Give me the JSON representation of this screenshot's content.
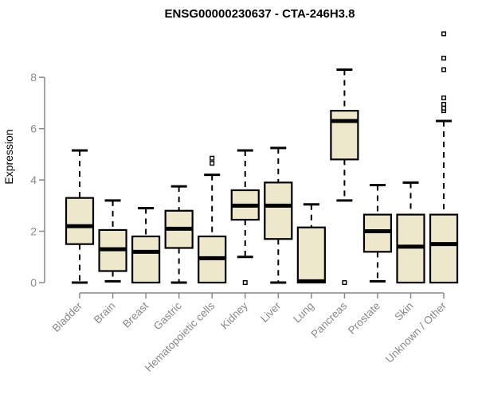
{
  "title": "ENSG00000230637 - CTA-246H3.8",
  "colors": {
    "background": "#FFFFFF",
    "box_fill": "#EDE8CC",
    "box_stroke": "#000000",
    "median": "#000000",
    "whisker": "#000000",
    "outlier_stroke": "#000000",
    "outlier_fill": "#FFFFFF",
    "axis": "#888888",
    "title": "#000000"
  },
  "chart_data": {
    "type": "boxplot",
    "title": "ENSG00000230637 - CTA-246H3.8",
    "xlabel": "",
    "ylabel": "Expression",
    "ylim": [
      0,
      9.8
    ],
    "y_ticks": [
      0,
      2,
      4,
      6,
      8
    ],
    "grid": false,
    "legend": false,
    "categories": [
      "Bladder",
      "Brain",
      "Breast",
      "Gastric",
      "Hematopoietic cells",
      "Kidney",
      "Liver",
      "Lung",
      "Pancreas",
      "Prostate",
      "Skin",
      "Unknown / Other"
    ],
    "series": [
      {
        "category": "Bladder",
        "whisker_low": 0,
        "q1": 1.5,
        "median": 2.2,
        "q3": 3.3,
        "whisker_high": 5.15,
        "outliers": []
      },
      {
        "category": "Brain",
        "whisker_low": 0.05,
        "q1": 0.45,
        "median": 1.3,
        "q3": 2.05,
        "whisker_high": 3.2,
        "outliers": []
      },
      {
        "category": "Breast",
        "whisker_low": 0,
        "q1": 0,
        "median": 1.2,
        "q3": 1.8,
        "whisker_high": 2.9,
        "outliers": []
      },
      {
        "category": "Gastric",
        "whisker_low": 0,
        "q1": 1.35,
        "median": 2.1,
        "q3": 2.8,
        "whisker_high": 3.75,
        "outliers": []
      },
      {
        "category": "Hematopoietic cells",
        "whisker_low": 0,
        "q1": 0,
        "median": 0.95,
        "q3": 1.8,
        "whisker_high": 4.2,
        "outliers": [
          4.65,
          4.85
        ]
      },
      {
        "category": "Kidney",
        "whisker_low": 1.0,
        "q1": 2.45,
        "median": 3.0,
        "q3": 3.6,
        "whisker_high": 5.15,
        "outliers": [
          0
        ]
      },
      {
        "category": "Liver",
        "whisker_low": 0,
        "q1": 1.7,
        "median": 3.0,
        "q3": 3.9,
        "whisker_high": 5.25,
        "outliers": []
      },
      {
        "category": "Lung",
        "whisker_low": 0,
        "q1": 0,
        "median": 0.05,
        "q3": 2.15,
        "whisker_high": 3.05,
        "outliers": []
      },
      {
        "category": "Pancreas",
        "whisker_low": 3.2,
        "q1": 4.8,
        "median": 6.3,
        "q3": 6.7,
        "whisker_high": 8.3,
        "outliers": [
          0
        ]
      },
      {
        "category": "Prostate",
        "whisker_low": 0.05,
        "q1": 1.2,
        "median": 2.0,
        "q3": 2.65,
        "whisker_high": 3.8,
        "outliers": []
      },
      {
        "category": "Skin",
        "whisker_low": 0,
        "q1": 0,
        "median": 1.4,
        "q3": 2.65,
        "whisker_high": 3.9,
        "outliers": []
      },
      {
        "category": "Unknown / Other",
        "whisker_low": 0,
        "q1": 0,
        "median": 1.5,
        "q3": 2.65,
        "whisker_high": 6.3,
        "outliers": [
          6.7,
          6.8,
          6.95,
          7.2,
          8.3,
          8.75,
          9.7
        ]
      }
    ]
  }
}
